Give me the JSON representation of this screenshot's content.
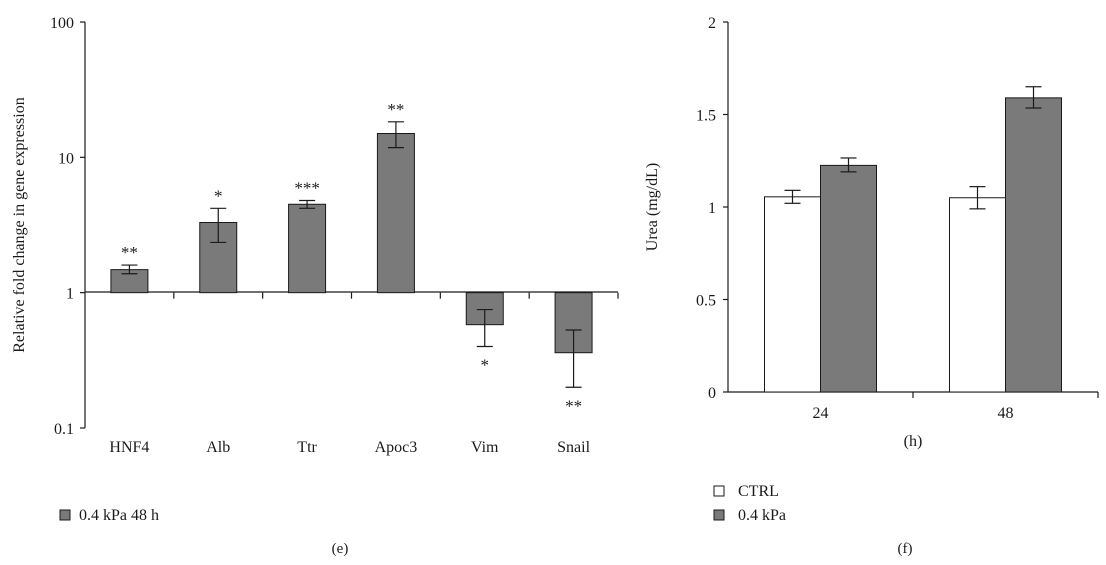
{
  "colors": {
    "bar_dark": "#7a7a7a",
    "bar_light": "#ffffff",
    "stroke": "#1a1a1a"
  },
  "chart_data": [
    {
      "type": "bar",
      "panel_label": "(e)",
      "categories": [
        "HNF4",
        "Alb",
        "Ttr",
        "Apoc3",
        "Vim",
        "Snail"
      ],
      "series": [
        {
          "name": "0.4 kPa 48 h",
          "values": [
            1.48,
            3.3,
            4.5,
            15.0,
            0.58,
            0.36
          ],
          "error_low": [
            1.38,
            2.35,
            4.2,
            11.8,
            0.4,
            0.2
          ],
          "error_high": [
            1.6,
            4.2,
            4.8,
            18.3,
            0.75,
            0.53
          ],
          "significance": [
            "**",
            "*",
            "***",
            "**",
            "*",
            "**"
          ]
        }
      ],
      "ylabel": "Relative fold change in gene expression",
      "xlabel": "",
      "yscale": "log",
      "ylim": [
        0.1,
        100
      ],
      "baseline": 1,
      "yticks": [
        "0.1",
        "1",
        "10",
        "100"
      ],
      "grid": false,
      "legend_position": "bottom-left"
    },
    {
      "type": "bar",
      "panel_label": "(f)",
      "categories": [
        "24",
        "48"
      ],
      "series": [
        {
          "name": "CTRL",
          "values": [
            1.055,
            1.05
          ],
          "error_low": [
            1.02,
            0.99
          ],
          "error_high": [
            1.09,
            1.11
          ]
        },
        {
          "name": "0.4 kPa",
          "values": [
            1.225,
            1.59
          ],
          "error_low": [
            1.19,
            1.535
          ],
          "error_high": [
            1.265,
            1.65
          ]
        }
      ],
      "ylabel": "Urea (mg/dL)",
      "xlabel": "(h)",
      "yscale": "linear",
      "ylim": [
        0,
        2
      ],
      "yticks": [
        "0",
        "0.5",
        "1",
        "1.5",
        "2"
      ],
      "grid": false,
      "legend_position": "bottom-left"
    }
  ]
}
